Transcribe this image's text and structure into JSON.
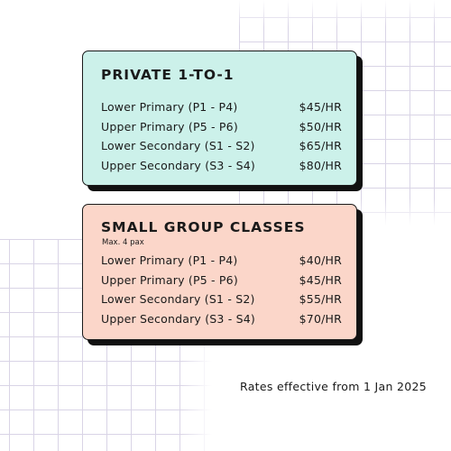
{
  "private": {
    "title": "PRIVATE 1-TO-1",
    "color": "#ccf1ea",
    "rates": [
      {
        "level": "Lower Primary (P1 - P4)",
        "price": "$45/HR"
      },
      {
        "level": "Upper Primary (P5 - P6)",
        "price": "$50/HR"
      },
      {
        "level": "Lower Secondary (S1 - S2)",
        "price": "$65/HR"
      },
      {
        "level": "Upper Secondary (S3 - S4)",
        "price": "$80/HR"
      }
    ]
  },
  "group": {
    "title": "SMALL GROUP CLASSES",
    "note": "Max. 4 pax",
    "color": "#fbd6c9",
    "rates": [
      {
        "level": "Lower Primary (P1 - P4)",
        "price": "$40/HR"
      },
      {
        "level": "Upper Primary (P5 - P6)",
        "price": "$45/HR"
      },
      {
        "level": "Lower Secondary (S1 - S2)",
        "price": "$55/HR"
      },
      {
        "level": "Upper Secondary (S3 - S4)",
        "price": "$70/HR"
      }
    ]
  },
  "footnote": "Rates effective from 1 Jan 2025"
}
